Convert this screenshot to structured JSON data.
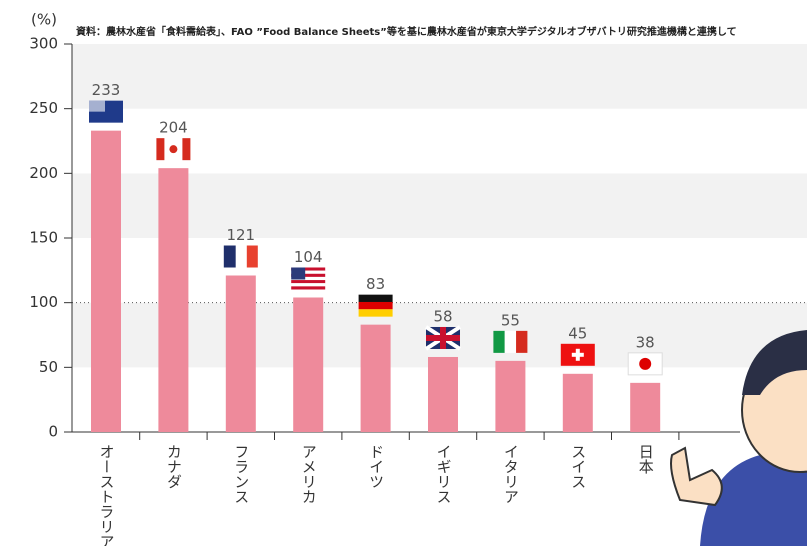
{
  "chart_data": {
    "type": "bar",
    "source": "資料：農林水産省「食料需給表」、FAO ”Food Balance Sheets”等を基に農林水産省が東京大学デジタルオブザバトリ研究推進機構と連携して",
    "y_unit": "(%)",
    "categories": [
      "オーストラリア",
      "カナダ",
      "フランス",
      "アメリカ",
      "ドイツ",
      "イギリス",
      "イタリア",
      "スイス",
      "日本"
    ],
    "values": [
      233,
      204,
      121,
      104,
      83,
      58,
      55,
      45,
      38
    ],
    "color": "#ee8a9b",
    "ylim": [
      0,
      300
    ],
    "yticks": [
      0,
      50,
      100,
      150,
      200,
      250,
      300
    ],
    "reference_line": 100
  }
}
